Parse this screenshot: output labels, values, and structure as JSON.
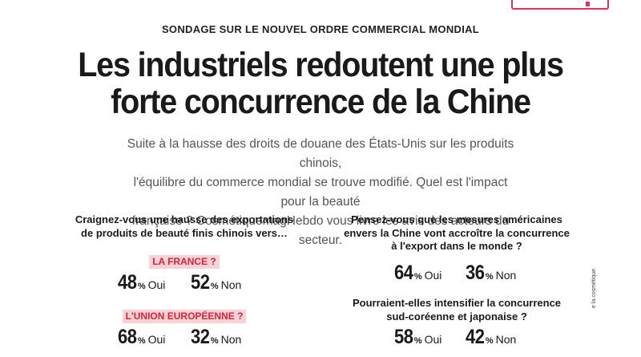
{
  "kicker": "SONDAGE SUR LE NOUVEL ORDRE COMMERCIAL MONDIAL",
  "headline": {
    "line1": "Les industriels redoutent une plus",
    "line2": "forte concurrence de la Chine"
  },
  "lede": {
    "line1": "Suite à la hausse des droits de douane des États-Unis sur les produits chinois,",
    "line2": "l'équilibre du commerce mondial se trouve modifié. Quel est l'impact pour la beauté",
    "line3": "française ? CosmétiquemagHebdo vous livre les avis des acteurs du secteur."
  },
  "left": {
    "question_line1": "Craignez-vous une hausse des exportations",
    "question_line2": "de produits de beauté finis chinois vers…",
    "items": [
      {
        "label": "LA FRANCE ?",
        "yes": "48",
        "no": "52"
      },
      {
        "label": "L'UNION EUROPÉENNE ?",
        "yes": "68",
        "no": "32"
      }
    ]
  },
  "right": {
    "q1_line1": "Pensez-vous que les mesures américaines",
    "q1_line2": "envers la Chine vont accroître la concurrence",
    "q1_line3": "à l'export dans le monde ?",
    "q1_yes": "64",
    "q1_no": "36",
    "q2_line1": "Pourraient-elles intensifier la concurrence",
    "q2_line2": "sud-coréenne et japonaise ?",
    "q2_yes": "58",
    "q2_no": "42"
  },
  "units": {
    "percent": "%",
    "yes": "Oui",
    "no": "Non"
  },
  "side_credit": "e la cosmétique.",
  "colors": {
    "accent": "#d7243a",
    "tag_bg": "#f9d2d5",
    "badge": "#e2325a"
  }
}
